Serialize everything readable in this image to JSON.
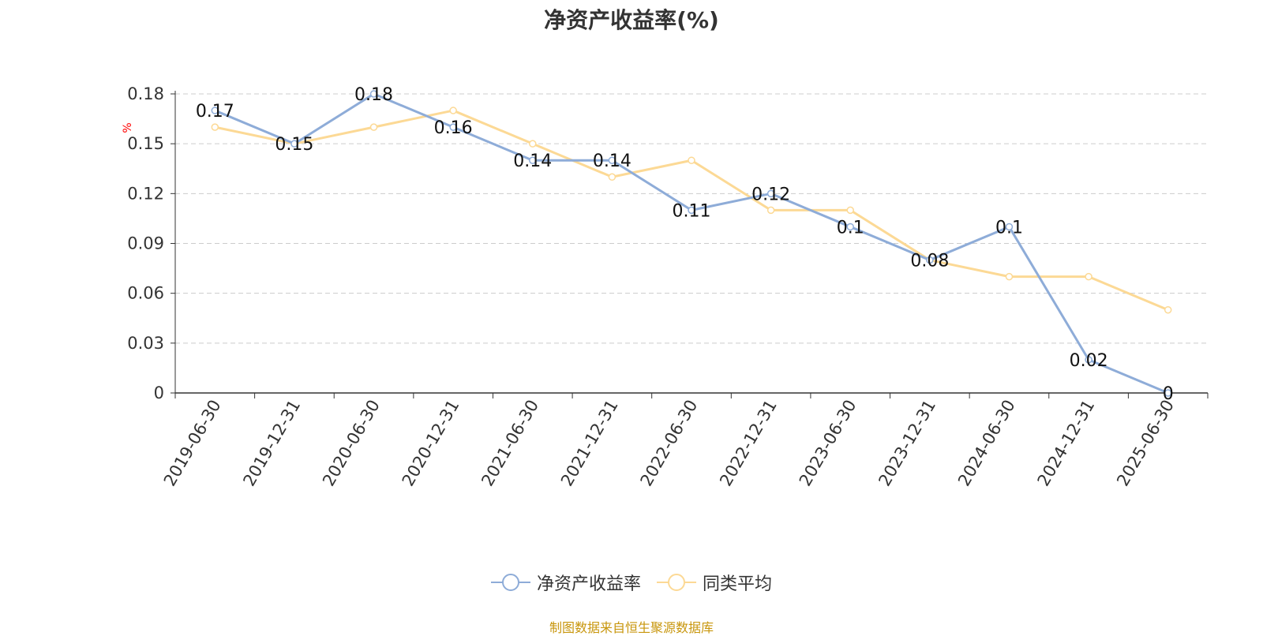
{
  "chart_data": {
    "type": "line",
    "title": "净资产收益率(%)",
    "ylabel": "%",
    "xlabel": "",
    "categories": [
      "2019-06-30",
      "2019-12-31",
      "2020-06-30",
      "2020-12-31",
      "2021-06-30",
      "2021-12-31",
      "2022-06-30",
      "2022-12-31",
      "2023-06-30",
      "2023-12-31",
      "2024-06-30",
      "2024-12-31",
      "2025-06-30"
    ],
    "ylim": [
      0,
      0.18
    ],
    "yticks": [
      0,
      0.03,
      0.06,
      0.09,
      0.12,
      0.15,
      0.18
    ],
    "ytick_labels": [
      "0",
      "0.03",
      "0.06",
      "0.09",
      "0.12",
      "0.15",
      "0.18"
    ],
    "grid": true,
    "legend_position": "bottom",
    "series": [
      {
        "name": "净资产收益率",
        "color": "#8eacd8",
        "values": [
          0.17,
          0.15,
          0.18,
          0.16,
          0.14,
          0.14,
          0.11,
          0.12,
          0.1,
          0.08,
          0.1,
          0.02,
          0
        ],
        "labels": [
          "0.17",
          "0.15",
          "0.18",
          "0.16",
          "0.14",
          "0.14",
          "0.11",
          "0.12",
          "0.1",
          "0.08",
          "0.1",
          "0.02",
          "0"
        ]
      },
      {
        "name": "同类平均",
        "color": "#fcd995",
        "values": [
          0.16,
          0.15,
          0.16,
          0.17,
          0.15,
          0.13,
          0.14,
          0.11,
          0.11,
          0.08,
          0.07,
          0.07,
          0.05
        ]
      }
    ]
  },
  "colors": {
    "axis": "#333333",
    "grid": "#cccccc",
    "ylabel": "#ff0000",
    "footer": "#c8960c"
  },
  "footer": "制图数据来自恒生聚源数据库"
}
